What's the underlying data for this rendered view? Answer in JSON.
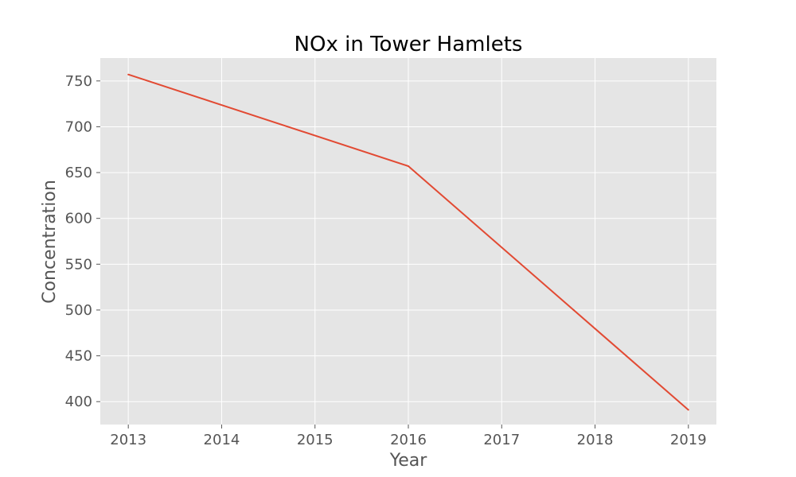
{
  "chart_data": {
    "type": "line",
    "title": "NOx in Tower Hamlets",
    "xlabel": "Year",
    "ylabel": "Concentration",
    "x": [
      2013,
      2016,
      2019
    ],
    "series": [
      {
        "values": [
          757,
          657,
          391
        ],
        "color": "#e24a33"
      }
    ],
    "xlim": [
      2012.7,
      2019.3
    ],
    "ylim": [
      375,
      775
    ],
    "xticks": [
      "2013",
      "2014",
      "2015",
      "2016",
      "2017",
      "2018",
      "2019"
    ],
    "yticks": [
      "400",
      "450",
      "500",
      "550",
      "600",
      "650",
      "700",
      "750"
    ],
    "grid": true,
    "style": {
      "plot_background": "#e5e5e5",
      "grid_color": "#ffffff"
    }
  }
}
